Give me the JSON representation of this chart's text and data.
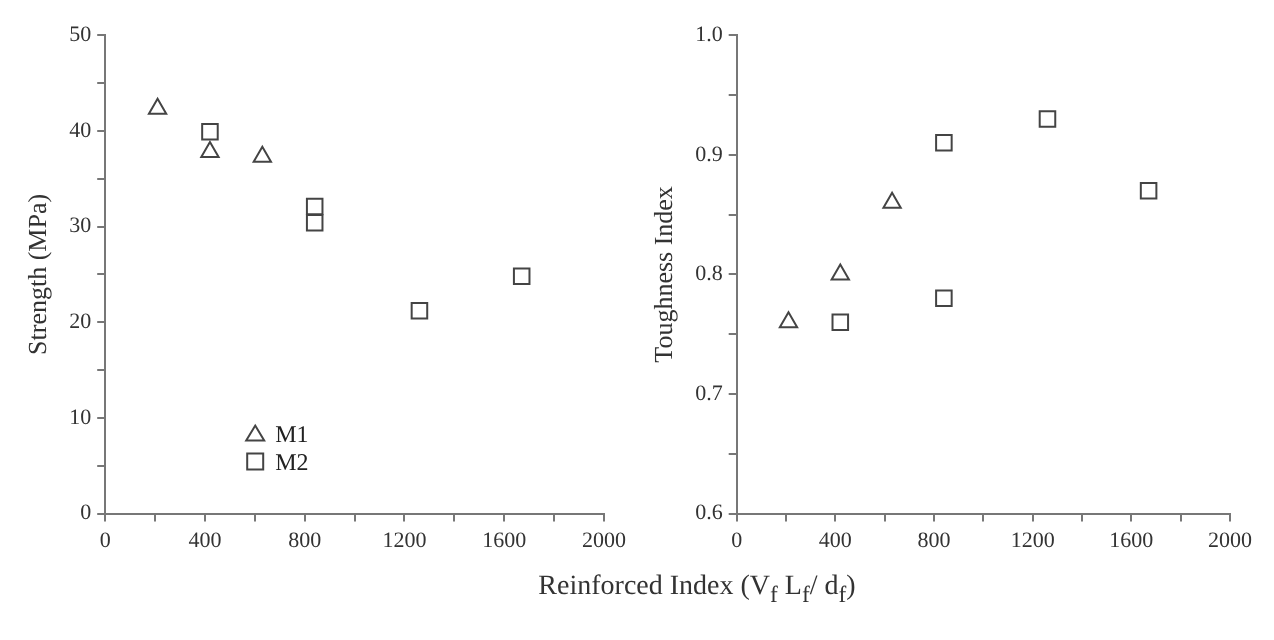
{
  "chart_data": [
    {
      "type": "scatter",
      "xlabel": "Reinforced Index (V$_{f}$ L$_{f}$/ d$_{f}$)",
      "ylabel": "Strength (MPa)",
      "xlim": [
        0,
        2000
      ],
      "xticks": [
        0,
        {
          "value": 200,
          "label": null
        },
        400,
        {
          "value": 600,
          "label": null
        },
        800,
        {
          "value": 1000,
          "label": null
        },
        1200,
        {
          "value": 1400,
          "label": null
        },
        1600,
        {
          "value": 1800,
          "label": null
        },
        2000
      ],
      "ylim": [
        0,
        50
      ],
      "yticks": [
        0,
        {
          "value": 5,
          "label": null
        },
        10,
        {
          "value": 15,
          "label": null
        },
        20,
        {
          "value": 25,
          "label": null
        },
        30,
        {
          "value": 35,
          "label": null
        },
        40,
        {
          "value": 45,
          "label": null
        },
        50
      ],
      "grid": false,
      "legend": "bottom left",
      "series": [
        {
          "name": "M1",
          "color": "#444444",
          "marker": "triangle",
          "x": [
            210,
            420,
            630
          ],
          "values": [
            42.3,
            37.8,
            37.3
          ]
        },
        {
          "name": "M2",
          "color": "#444444",
          "marker": "square",
          "x": [
            420,
            840,
            840,
            1260,
            1670
          ],
          "values": [
            39.9,
            32.1,
            30.4,
            21.2,
            24.8
          ]
        }
      ]
    },
    {
      "type": "scatter",
      "ylabel": "Toughness Index",
      "xlim": [
        0,
        2000
      ],
      "xticks": [
        0,
        {
          "value": 200,
          "label": null
        },
        400,
        {
          "value": 600,
          "label": null
        },
        800,
        {
          "value": 1000,
          "label": null
        },
        1200,
        {
          "value": 1400,
          "label": null
        },
        1600,
        {
          "value": 1800,
          "label": null
        },
        2000
      ],
      "ylim": [
        0.6,
        1.0
      ],
      "yticks": [
        0.6,
        {
          "value": 0.65,
          "label": null
        },
        0.7,
        {
          "value": 0.75,
          "label": null
        },
        0.8,
        {
          "value": 0.85,
          "label": null
        },
        0.9,
        {
          "value": 0.95,
          "label": null
        },
        {
          "value": 1,
          "label": "1.0"
        }
      ],
      "grid": false,
      "legend": false,
      "series": [
        {
          "color": "#444444",
          "marker": "triangle",
          "x": [
            210,
            420,
            630
          ],
          "values": [
            0.76,
            0.8,
            0.86
          ]
        },
        {
          "color": "#444444",
          "marker": "square",
          "x": [
            420,
            840,
            840,
            1260,
            1670
          ],
          "values": [
            0.76,
            0.91,
            0.78,
            0.93,
            0.87
          ]
        }
      ]
    }
  ]
}
